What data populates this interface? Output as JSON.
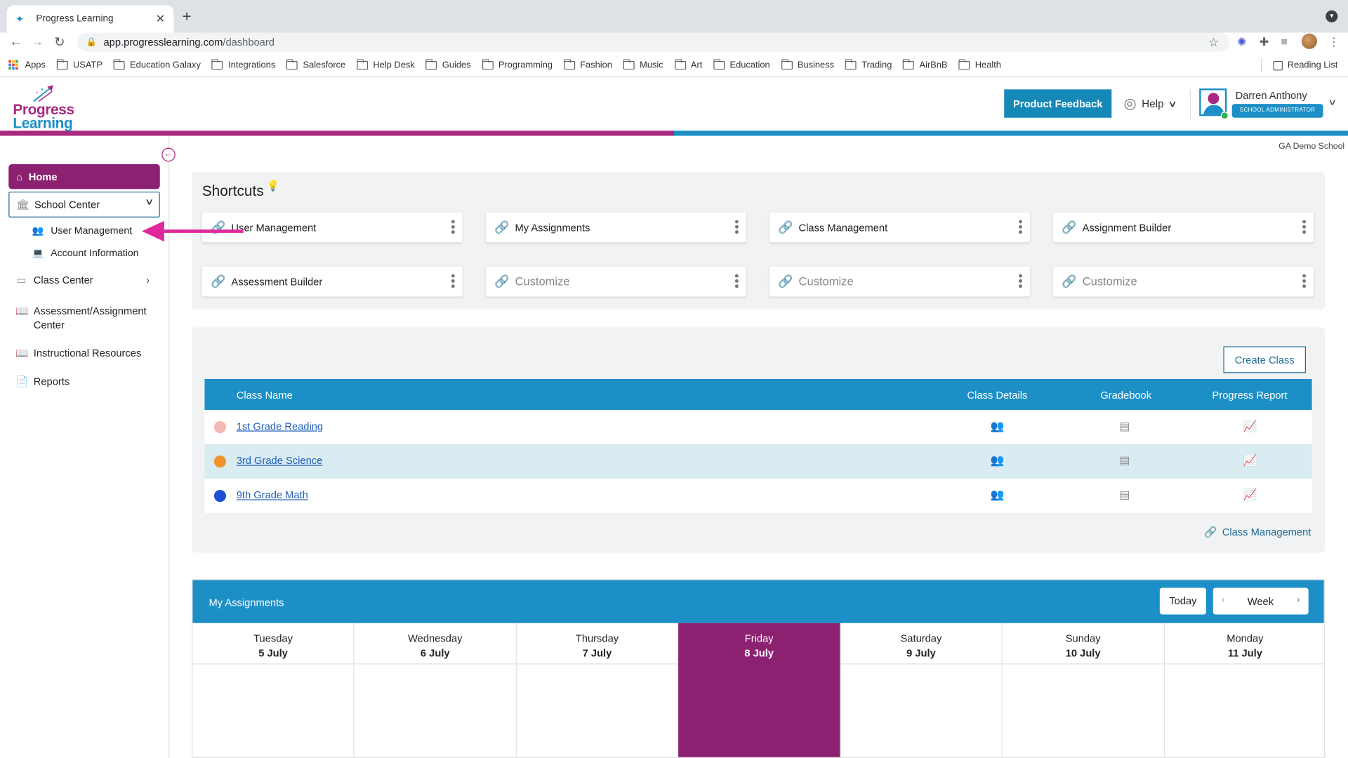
{
  "browser": {
    "tab_title": "Progress Learning",
    "url_host": "app.progresslearning.com",
    "url_path": "/dashboard",
    "bookmarks": [
      "Apps",
      "USATP",
      "Education Galaxy",
      "Integrations",
      "Salesforce",
      "Help Desk",
      "Guides",
      "Programming",
      "Fashion",
      "Music",
      "Art",
      "Education",
      "Business",
      "Trading",
      "AirBnB",
      "Health"
    ],
    "reading_list": "Reading List"
  },
  "header": {
    "logo_line1": "Progress",
    "logo_line2": "Learning",
    "feedback_button": "Product Feedback",
    "help_label": "Help",
    "user_name": "Darren Anthony",
    "user_role": "SCHOOL ADMINISTRATOR",
    "school_name": "GA Demo School",
    "colors": {
      "brand_pink": "#a8297f",
      "brand_blue": "#1c8fc7",
      "active_purple": "#8c2172"
    }
  },
  "sidebar": {
    "home": "Home",
    "school_center": "School Center",
    "user_management": "User Management",
    "account_information": "Account Information",
    "class_center": "Class Center",
    "assessment_line1": "Assessment/Assignment",
    "assessment_line2": "Center",
    "instructional_resources": "Instructional Resources",
    "reports": "Reports"
  },
  "shortcuts": {
    "title": "Shortcuts",
    "items": [
      {
        "label": "User Management",
        "placeholder": false
      },
      {
        "label": "My Assignments",
        "placeholder": false
      },
      {
        "label": "Class Management",
        "placeholder": false
      },
      {
        "label": "Assignment Builder",
        "placeholder": false
      },
      {
        "label": "Assessment Builder",
        "placeholder": false
      },
      {
        "label": "Customize",
        "placeholder": true
      },
      {
        "label": "Customize",
        "placeholder": true
      },
      {
        "label": "Customize",
        "placeholder": true
      }
    ]
  },
  "classes": {
    "create_button": "Create Class",
    "columns": [
      "Class Name",
      "Class Details",
      "Gradebook",
      "Progress Report"
    ],
    "rows": [
      {
        "name": "1st Grade Reading",
        "color": "#f4b9b5"
      },
      {
        "name": "3rd Grade Science",
        "color": "#f0922a"
      },
      {
        "name": "9th Grade Math",
        "color": "#1a4fd6"
      }
    ],
    "footer_link": "Class Management"
  },
  "assignments": {
    "title": "My Assignments",
    "today_button": "Today",
    "view_label": "Week",
    "days": [
      {
        "weekday": "Tuesday",
        "date": "5 July"
      },
      {
        "weekday": "Wednesday",
        "date": "6 July"
      },
      {
        "weekday": "Thursday",
        "date": "7 July"
      },
      {
        "weekday": "Friday",
        "date": "8 July",
        "active": true
      },
      {
        "weekday": "Saturday",
        "date": "9 July"
      },
      {
        "weekday": "Sunday",
        "date": "10 July"
      },
      {
        "weekday": "Monday",
        "date": "11 July"
      }
    ]
  }
}
